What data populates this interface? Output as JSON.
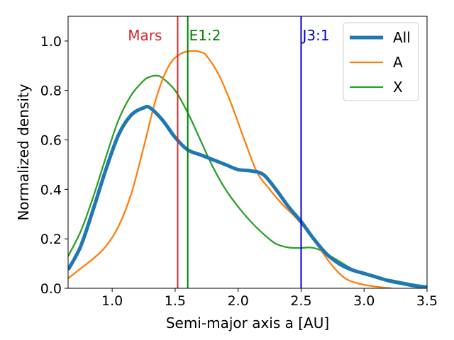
{
  "chart_data": {
    "type": "line",
    "title": "",
    "xlabel": "Semi-major axis a [AU]",
    "ylabel": "Normalized density",
    "xlim": [
      0.65,
      3.5
    ],
    "ylim": [
      0.0,
      1.1
    ],
    "xticks": [
      1.0,
      1.5,
      2.0,
      2.5,
      3.0,
      3.5
    ],
    "xtick_labels": [
      "1.0",
      "1.5",
      "2.0",
      "2.5",
      "3.0",
      "3.5"
    ],
    "yticks": [
      0.0,
      0.2,
      0.4,
      0.6,
      0.8,
      1.0
    ],
    "ytick_labels": [
      "0.0",
      "0.2",
      "0.4",
      "0.6",
      "0.8",
      "1.0"
    ],
    "grid": false,
    "legend_position": "top-right",
    "series": [
      {
        "name": "All",
        "color": "#1f77b4",
        "x": [
          0.65,
          0.75,
          0.85,
          0.95,
          1.05,
          1.15,
          1.25,
          1.3,
          1.4,
          1.5,
          1.6,
          1.7,
          1.8,
          1.9,
          2.0,
          2.1,
          2.2,
          2.3,
          2.4,
          2.5,
          2.6,
          2.7,
          2.8,
          2.9,
          3.0,
          3.1,
          3.2,
          3.3,
          3.4,
          3.5
        ],
        "y": [
          0.075,
          0.17,
          0.32,
          0.48,
          0.62,
          0.7,
          0.73,
          0.73,
          0.68,
          0.61,
          0.56,
          0.54,
          0.52,
          0.5,
          0.48,
          0.475,
          0.46,
          0.4,
          0.33,
          0.27,
          0.2,
          0.14,
          0.1,
          0.075,
          0.06,
          0.045,
          0.03,
          0.02,
          0.01,
          0.005
        ]
      },
      {
        "name": "A",
        "color": "#ff7f0e",
        "x": [
          0.65,
          0.75,
          0.85,
          0.95,
          1.05,
          1.15,
          1.25,
          1.35,
          1.45,
          1.55,
          1.65,
          1.7,
          1.75,
          1.85,
          1.95,
          2.05,
          2.15,
          2.25,
          2.35,
          2.45,
          2.55,
          2.65,
          2.75,
          2.85,
          2.95,
          3.05,
          3.15,
          3.22
        ],
        "y": [
          0.04,
          0.08,
          0.12,
          0.17,
          0.25,
          0.38,
          0.57,
          0.77,
          0.9,
          0.95,
          0.96,
          0.955,
          0.94,
          0.86,
          0.74,
          0.6,
          0.47,
          0.4,
          0.34,
          0.29,
          0.23,
          0.16,
          0.09,
          0.04,
          0.02,
          0.01,
          0.003,
          0.0
        ]
      },
      {
        "name": "X",
        "color": "#2ca02c",
        "x": [
          0.65,
          0.75,
          0.85,
          0.95,
          1.05,
          1.15,
          1.25,
          1.3,
          1.35,
          1.4,
          1.5,
          1.6,
          1.7,
          1.8,
          1.9,
          2.0,
          2.1,
          2.2,
          2.3,
          2.4,
          2.5,
          2.55,
          2.6,
          2.65,
          2.7,
          2.8,
          2.9,
          3.0,
          3.1,
          3.2,
          3.3,
          3.4,
          3.5
        ],
        "y": [
          0.13,
          0.23,
          0.37,
          0.53,
          0.68,
          0.78,
          0.84,
          0.855,
          0.86,
          0.85,
          0.8,
          0.71,
          0.6,
          0.49,
          0.4,
          0.33,
          0.27,
          0.22,
          0.18,
          0.165,
          0.163,
          0.165,
          0.163,
          0.155,
          0.14,
          0.11,
          0.08,
          0.06,
          0.045,
          0.035,
          0.025,
          0.015,
          0.008
        ]
      }
    ],
    "vlines": [
      {
        "label": "Mars",
        "x": 1.52,
        "color": "#d62728"
      },
      {
        "label": "E1:2",
        "x": 1.6,
        "color": "#008000"
      },
      {
        "label": "J3:1",
        "x": 2.5,
        "color": "#0000cc"
      }
    ]
  }
}
